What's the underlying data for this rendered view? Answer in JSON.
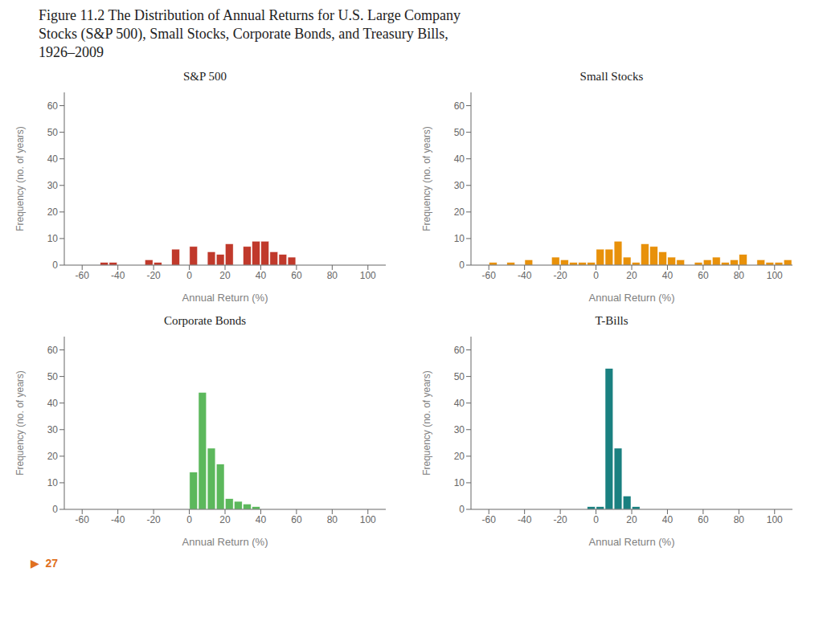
{
  "title": [
    "Figure 11.2  The Distribution of Annual Returns for U.S. Large Company",
    "Stocks (S&P 500), Small Stocks, Corporate Bonds, and Treasury Bills,",
    "1926–2009"
  ],
  "annotation": "▶  27",
  "chart_data": [
    {
      "type": "bar",
      "title": "S&P 500",
      "xlabel": "Annual Return (%)",
      "ylabel": "Frequency (no. of years)",
      "color": "#c0392b",
      "bin_width": 5,
      "x": [
        -50,
        -45,
        -25,
        -20,
        -10,
        -5,
        0,
        5,
        10,
        15,
        20,
        25,
        30,
        35,
        40,
        45,
        50,
        55
      ],
      "values": [
        1,
        1,
        2,
        1,
        6,
        0,
        7,
        0,
        5,
        4,
        8,
        0,
        7,
        9,
        9,
        5,
        4,
        3
      ],
      "xlim": [
        -70,
        110
      ],
      "ylim": [
        0,
        65
      ],
      "xticks": [
        -60,
        -40,
        -20,
        0,
        20,
        40,
        60,
        80,
        100
      ],
      "yticks": [
        0,
        10,
        20,
        30,
        40,
        50,
        60
      ],
      "grid": false
    },
    {
      "type": "bar",
      "title": "Small Stocks",
      "xlabel": "Annual Return (%)",
      "ylabel": "Frequency (no. of years)",
      "color": "#e8910a",
      "bin_width": 5,
      "x": [
        -60,
        -50,
        -40,
        -35,
        -25,
        -20,
        -15,
        -10,
        -5,
        0,
        5,
        10,
        15,
        20,
        25,
        30,
        35,
        40,
        45,
        55,
        60,
        65,
        70,
        75,
        80,
        85,
        90,
        95,
        100,
        105
      ],
      "values": [
        1,
        1,
        2,
        0,
        3,
        2,
        1,
        1,
        1,
        6,
        6,
        9,
        3,
        1,
        8,
        7,
        5,
        3,
        2,
        1,
        2,
        3,
        1,
        2,
        4,
        0,
        2,
        1,
        1,
        2
      ],
      "xlim": [
        -70,
        110
      ],
      "ylim": [
        0,
        65
      ],
      "xticks": [
        -60,
        -40,
        -20,
        0,
        20,
        40,
        60,
        80,
        100
      ],
      "yticks": [
        0,
        10,
        20,
        30,
        40,
        50,
        60
      ],
      "grid": false
    },
    {
      "type": "bar",
      "title": "Corporate Bonds",
      "xlabel": "Annual Return (%)",
      "ylabel": "Frequency (no. of years)",
      "color": "#5cb85c",
      "bin_width": 5,
      "x": [
        -5,
        0,
        5,
        10,
        15,
        20,
        25,
        30,
        35
      ],
      "values": [
        0,
        14,
        44,
        23,
        17,
        4,
        3,
        2,
        1
      ],
      "xlim": [
        -70,
        110
      ],
      "ylim": [
        0,
        65
      ],
      "xticks": [
        -60,
        -40,
        -20,
        0,
        20,
        40,
        60,
        80,
        100
      ],
      "yticks": [
        0,
        10,
        20,
        30,
        40,
        50,
        60
      ],
      "grid": false
    },
    {
      "type": "bar",
      "title": "T-Bills",
      "xlabel": "Annual Return (%)",
      "ylabel": "Frequency (no. of years)",
      "color": "#1a8080",
      "bin_width": 5,
      "x": [
        -5,
        0,
        5,
        10,
        15,
        20
      ],
      "values": [
        1,
        1,
        53,
        23,
        5,
        1
      ],
      "xlim": [
        -70,
        110
      ],
      "ylim": [
        0,
        65
      ],
      "xticks": [
        -60,
        -40,
        -20,
        0,
        20,
        40,
        60,
        80,
        100
      ],
      "yticks": [
        0,
        10,
        20,
        30,
        40,
        50,
        60
      ],
      "grid": false
    }
  ]
}
